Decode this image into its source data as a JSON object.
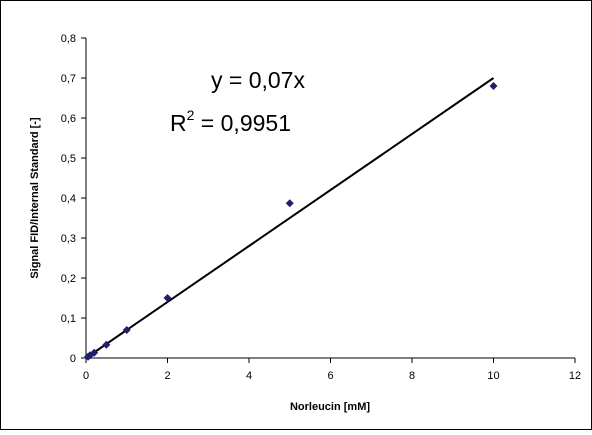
{
  "chart_data": {
    "type": "scatter",
    "xlabel": "Norleucin [mM]",
    "ylabel": "Signal FID/Internal Standard [-]",
    "xlim": [
      0,
      12
    ],
    "ylim": [
      0,
      0.8
    ],
    "x_ticks": [
      0,
      2,
      4,
      6,
      8,
      10,
      12
    ],
    "y_ticks": [
      0,
      0.1,
      0.2,
      0.3,
      0.4,
      0.5,
      0.6,
      0.7,
      0.8
    ],
    "x_tick_labels": [
      "0",
      "2",
      "4",
      "6",
      "8",
      "10",
      "12"
    ],
    "y_tick_labels": [
      "0",
      "0,1",
      "0,2",
      "0,3",
      "0,4",
      "0,5",
      "0,6",
      "0,7",
      "0,8"
    ],
    "grid": false,
    "series": [
      {
        "x": [
          0.05,
          0.1,
          0.2,
          0.5,
          1,
          2,
          5,
          10
        ],
        "y": [
          0.003,
          0.007,
          0.013,
          0.033,
          0.07,
          0.15,
          0.387,
          0.68
        ],
        "marker": "diamond",
        "color": "#1f1f6b"
      }
    ],
    "trendline": {
      "slope": 0.07,
      "intercept": 0,
      "x_range": [
        0,
        10
      ],
      "color": "#000000"
    },
    "annotations": {
      "equation": "y = 0,07x",
      "r2_prefix": "R",
      "r2_exponent": "2",
      "r2_value": " = 0,9951"
    }
  }
}
